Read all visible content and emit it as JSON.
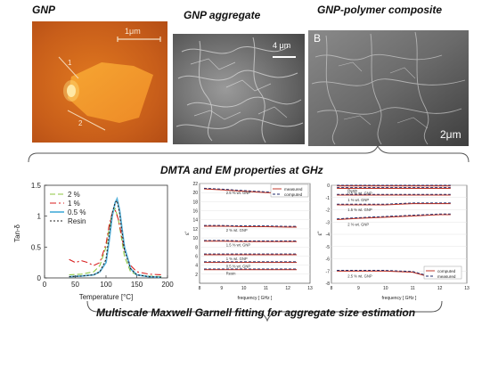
{
  "titles": {
    "gnp": "GNP",
    "aggregate": "GNP aggregate",
    "composite": "GNP-polymer composite",
    "dmta": "DMTA and EM properties at GHz",
    "fitting": "Multiscale Maxwell Garnell fitting for aggregate size estimation"
  },
  "afm": {
    "scalebar": "1μm",
    "line1": "1",
    "line2": "2"
  },
  "sem_aggregate": {
    "scalebar": "4 μm"
  },
  "sem_composite": {
    "panel_letter": "B",
    "scalebar": "2μm"
  },
  "chart_data": [
    {
      "type": "line",
      "ylabel": "Tan-δ",
      "xlabel": "Temperature [°C]",
      "xlim": [
        0,
        200
      ],
      "ylim": [
        0,
        1.5
      ],
      "xticks": [
        0,
        50,
        100,
        150,
        200
      ],
      "yticks": [
        0,
        0.5,
        1,
        1.5
      ],
      "ytick_labels": [
        "0",
        "0.5",
        "1",
        "1.5"
      ],
      "legend_position": "top-left",
      "series": [
        {
          "name": "2 %",
          "color": "#8cc63f",
          "dash": "6,3",
          "x": [
            40,
            60,
            80,
            90,
            100,
            105,
            110,
            115,
            120,
            125,
            130,
            140,
            150,
            170,
            190
          ],
          "y": [
            0.05,
            0.06,
            0.1,
            0.2,
            0.5,
            0.8,
            1.05,
            1.12,
            0.95,
            0.65,
            0.35,
            0.1,
            0.05,
            0.03,
            0.02
          ]
        },
        {
          "name": "1 %",
          "color": "#d81e1e",
          "dash": "7,3,2,3",
          "x": [
            40,
            50,
            60,
            70,
            80,
            90,
            100,
            105,
            110,
            115,
            120,
            125,
            130,
            140,
            150,
            170,
            190
          ],
          "y": [
            0.3,
            0.25,
            0.28,
            0.25,
            0.2,
            0.25,
            0.55,
            0.85,
            1.05,
            1.1,
            0.95,
            0.7,
            0.45,
            0.2,
            0.1,
            0.06,
            0.05
          ]
        },
        {
          "name": "0.5 %",
          "color": "#5ab4dc",
          "dash": "",
          "x": [
            40,
            60,
            80,
            90,
            100,
            105,
            110,
            115,
            118,
            122,
            126,
            130,
            140,
            150,
            170,
            190
          ],
          "y": [
            0.02,
            0.03,
            0.05,
            0.1,
            0.25,
            0.6,
            1.0,
            1.22,
            1.28,
            1.1,
            0.8,
            0.5,
            0.15,
            0.05,
            0.02,
            0.01
          ]
        },
        {
          "name": "Resin",
          "color": "#222222",
          "dash": "2,2",
          "x": [
            40,
            60,
            80,
            90,
            100,
            105,
            110,
            115,
            118,
            122,
            126,
            130,
            140,
            150,
            170,
            190
          ],
          "y": [
            0.02,
            0.03,
            0.05,
            0.1,
            0.3,
            0.7,
            1.05,
            1.22,
            1.25,
            1.05,
            0.75,
            0.45,
            0.15,
            0.05,
            0.02,
            0.01
          ]
        }
      ]
    },
    {
      "type": "line",
      "ylabel": "ε'",
      "xlabel": "frequency [ GHz ]",
      "xlim": [
        8,
        13
      ],
      "ylim": [
        0,
        22
      ],
      "xticks": [
        8,
        9,
        10,
        11,
        12,
        13
      ],
      "yticks": [
        2,
        4,
        6,
        8,
        10,
        12,
        14,
        16,
        18,
        20,
        22
      ],
      "legend_position": "top-right",
      "legend": [
        {
          "name": "measured",
          "color": "#c0392b",
          "dash": ""
        },
        {
          "name": "computed",
          "color": "#1f2b6b",
          "dash": "3,2"
        }
      ],
      "curve_labels": [
        "2.5 % wt. GNP",
        "2 % wt. GNP",
        "1.5 % wt. GNP",
        "1 % wt. GNP",
        "0.5 % wt. GNP",
        "Resin"
      ],
      "series": [
        {
          "label": "2.5 % wt. GNP",
          "x": [
            8.2,
            9,
            10,
            11,
            12,
            12.4
          ],
          "y": [
            20.8,
            20.6,
            20.3,
            20.0,
            19.8,
            19.7
          ]
        },
        {
          "label": "2 % wt. GNP",
          "x": [
            8.2,
            9,
            10,
            11,
            12,
            12.4
          ],
          "y": [
            12.6,
            12.6,
            12.5,
            12.5,
            12.4,
            12.4
          ]
        },
        {
          "label": "1.5 % wt. GNP",
          "x": [
            8.2,
            9,
            10,
            11,
            12,
            12.4
          ],
          "y": [
            9.3,
            9.3,
            9.2,
            9.2,
            9.2,
            9.2
          ]
        },
        {
          "label": "1 % wt. GNP",
          "x": [
            8.2,
            9,
            10,
            11,
            12,
            12.4
          ],
          "y": [
            6.3,
            6.3,
            6.3,
            6.3,
            6.3,
            6.3
          ]
        },
        {
          "label": "0.5 % wt. GNP",
          "x": [
            8.2,
            9,
            10,
            11,
            12,
            12.4
          ],
          "y": [
            4.6,
            4.6,
            4.6,
            4.6,
            4.6,
            4.6
          ]
        },
        {
          "label": "Resin",
          "x": [
            8.2,
            9,
            10,
            11,
            12,
            12.4
          ],
          "y": [
            3.0,
            3.0,
            3.0,
            3.0,
            3.0,
            3.0
          ]
        }
      ]
    },
    {
      "type": "line",
      "ylabel": "ε''",
      "xlabel": "frequency [ GHz ]",
      "xlim": [
        8,
        13
      ],
      "ylim": [
        -8,
        0
      ],
      "xticks": [
        8,
        9,
        10,
        11,
        12,
        13
      ],
      "yticks": [
        -8,
        -7,
        -6,
        -5,
        -4,
        -3,
        -2,
        -1,
        0
      ],
      "legend_position": "bottom-right",
      "legend": [
        {
          "name": "computed",
          "color": "#c0392b",
          "dash": ""
        },
        {
          "name": "measured",
          "color": "#1f2b6b",
          "dash": "3,2"
        }
      ],
      "curve_labels": [
        "Resin",
        "0.5 % wt. GNP",
        "1 % wt. GNP",
        "1.5 % wt. GNP",
        "2 % wt. GNP",
        "2.5 % wt. GNP"
      ],
      "series": [
        {
          "label": "Resin",
          "x": [
            8.2,
            9,
            10,
            11,
            12,
            12.4
          ],
          "y": [
            -0.05,
            -0.05,
            -0.05,
            -0.05,
            -0.05,
            -0.05
          ]
        },
        {
          "label": "0.5 % wt. GNP",
          "x": [
            8.2,
            9,
            10,
            11,
            12,
            12.4
          ],
          "y": [
            -0.25,
            -0.25,
            -0.25,
            -0.25,
            -0.25,
            -0.25
          ]
        },
        {
          "label": "1 % wt. GNP",
          "x": [
            8.2,
            9,
            10,
            11,
            12,
            12.4
          ],
          "y": [
            -0.8,
            -0.8,
            -0.8,
            -0.8,
            -0.8,
            -0.8
          ]
        },
        {
          "label": "1.5 % wt. GNP",
          "x": [
            8.2,
            9,
            10,
            11,
            12,
            12.4
          ],
          "y": [
            -1.6,
            -1.6,
            -1.6,
            -1.5,
            -1.5,
            -1.5
          ]
        },
        {
          "label": "2 % wt. GNP",
          "x": [
            8.2,
            9,
            10,
            11,
            12,
            12.4
          ],
          "y": [
            -2.8,
            -2.7,
            -2.6,
            -2.5,
            -2.4,
            -2.4
          ]
        },
        {
          "label": "2.5 % wt. GNP",
          "x": [
            8.2,
            9,
            10,
            11,
            11.5,
            12,
            12.4
          ],
          "y": [
            -7.0,
            -7.0,
            -7.0,
            -7.1,
            -7.4,
            -7.1,
            -7.0
          ]
        }
      ]
    }
  ]
}
